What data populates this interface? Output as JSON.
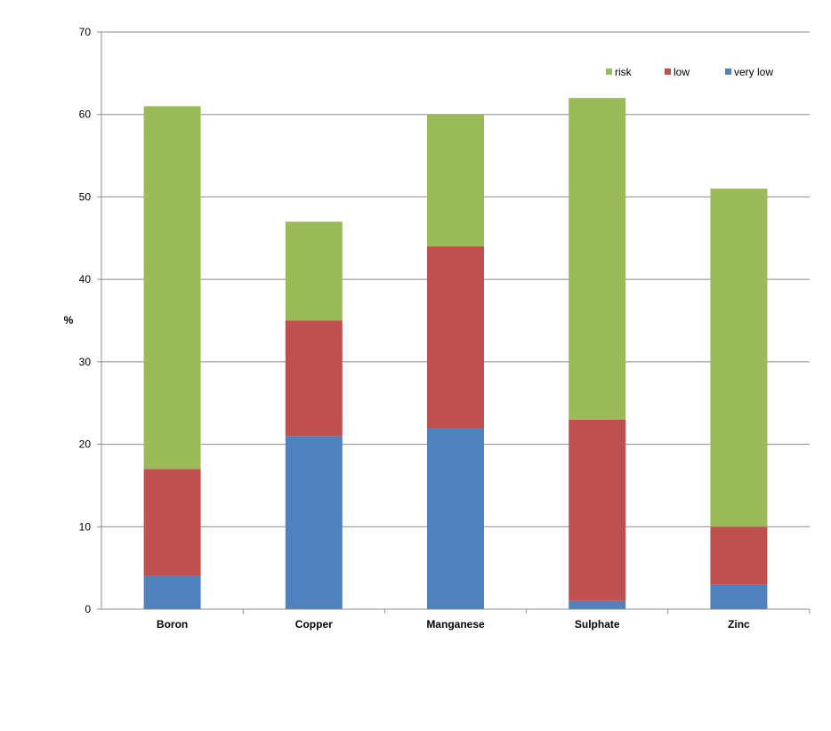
{
  "chart_data": {
    "type": "bar",
    "stacked": true,
    "title": "",
    "xlabel": "",
    "ylabel": "%",
    "ylim": [
      0,
      70
    ],
    "yticks": [
      0,
      10,
      20,
      30,
      40,
      50,
      60,
      70
    ],
    "grid": true,
    "legend_position": "top-right",
    "categories": [
      "Boron",
      "Copper",
      "Manganese",
      "Sulphate",
      "Zinc"
    ],
    "series": [
      {
        "name": "very low",
        "color": "#4F81BD",
        "values": [
          4,
          21,
          22,
          1,
          3
        ]
      },
      {
        "name": "low",
        "color": "#C0504D",
        "values": [
          13,
          14,
          22,
          22,
          7
        ]
      },
      {
        "name": "risk",
        "color": "#9BBB59",
        "values": [
          44,
          12,
          16,
          39,
          41
        ]
      }
    ],
    "legend_order": [
      "risk",
      "low",
      "very low"
    ]
  }
}
